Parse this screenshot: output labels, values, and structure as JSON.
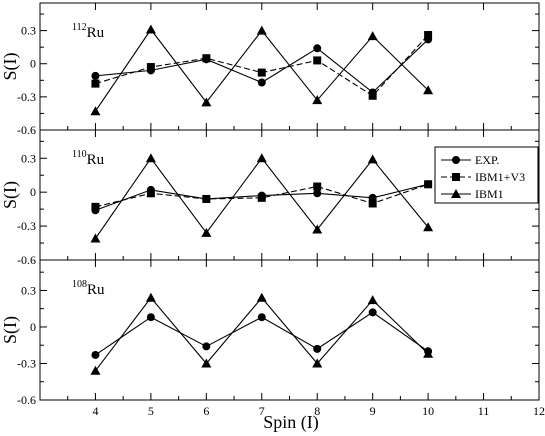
{
  "chart_data": [
    {
      "type": "line",
      "nucleus_mass": "112",
      "nucleus_symbol": "Ru",
      "ylabel": "S(I)",
      "ylim": [
        -0.6,
        0.55
      ],
      "y_ticks": [
        "0.3",
        "0",
        "-0.3",
        "-0.6"
      ],
      "x": [
        4,
        5,
        6,
        7,
        8,
        9,
        10
      ],
      "series": [
        {
          "name": "EXP.",
          "marker": "circle",
          "dash": "solid",
          "values": [
            -0.11,
            -0.06,
            0.04,
            -0.17,
            0.14,
            -0.26,
            0.22
          ]
        },
        {
          "name": "IBM1+V3",
          "marker": "square",
          "dash": "dashed",
          "values": [
            -0.18,
            -0.03,
            0.05,
            -0.08,
            0.03,
            -0.29,
            0.26
          ]
        },
        {
          "name": "IBM1",
          "marker": "triangle",
          "dash": "solid",
          "values": [
            -0.43,
            0.31,
            -0.35,
            0.3,
            -0.33,
            0.25,
            -0.24
          ]
        }
      ]
    },
    {
      "type": "line",
      "nucleus_mass": "110",
      "nucleus_symbol": "Ru",
      "ylabel": "S(I)",
      "ylim": [
        -0.6,
        0.55
      ],
      "y_ticks": [
        "0.3",
        "0",
        "-0.3",
        "-0.6"
      ],
      "x": [
        4,
        5,
        6,
        7,
        8,
        9,
        10
      ],
      "series": [
        {
          "name": "EXP.",
          "marker": "circle",
          "dash": "solid",
          "values": [
            -0.16,
            0.02,
            -0.06,
            -0.03,
            -0.01,
            -0.05,
            0.07
          ]
        },
        {
          "name": "IBM1+V3",
          "marker": "square",
          "dash": "dashed",
          "values": [
            -0.13,
            -0.01,
            -0.06,
            -0.05,
            0.05,
            -0.1,
            0.07
          ]
        },
        {
          "name": "IBM1",
          "marker": "triangle",
          "dash": "solid",
          "values": [
            -0.41,
            0.3,
            -0.36,
            0.3,
            -0.33,
            0.29,
            -0.31
          ]
        }
      ]
    },
    {
      "type": "line",
      "nucleus_mass": "108",
      "nucleus_symbol": "Ru",
      "ylabel": "S(I)",
      "ylim": [
        -0.6,
        0.55
      ],
      "y_ticks": [
        "0.3",
        "0",
        "-0.3",
        "-0.6"
      ],
      "x": [
        4,
        5,
        6,
        7,
        8,
        9,
        10
      ],
      "xlabel": "Spin (I)",
      "x_ticks": [
        "4",
        "5",
        "6",
        "7",
        "8",
        "9",
        "10",
        "11",
        "12"
      ],
      "series": [
        {
          "name": "EXP.",
          "marker": "circle",
          "dash": "solid",
          "values": [
            -0.23,
            0.08,
            -0.16,
            0.08,
            -0.18,
            0.12,
            -0.2
          ]
        },
        {
          "name": "IBM1",
          "marker": "triangle",
          "dash": "solid",
          "values": [
            -0.36,
            0.24,
            -0.3,
            0.24,
            -0.3,
            0.22,
            -0.22
          ]
        }
      ]
    }
  ],
  "x_axis": {
    "xlim": [
      3,
      12
    ],
    "tick_values": [
      4,
      5,
      6,
      7,
      8,
      9,
      10,
      11,
      12
    ]
  },
  "legend": {
    "placement": "middle panel, right",
    "entries": [
      {
        "label": "EXP.",
        "marker": "circle",
        "dash": "solid"
      },
      {
        "label": "IBM1+V3",
        "marker": "square",
        "dash": "dashed"
      },
      {
        "label": "IBM1",
        "marker": "triangle",
        "dash": "solid"
      }
    ]
  }
}
